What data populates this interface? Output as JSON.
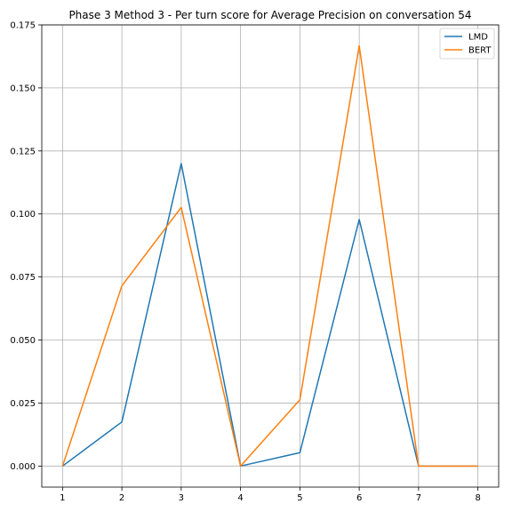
{
  "chart_data": {
    "type": "line",
    "title": "Phase 3 Method 3 - Per turn score for Average Precision on conversation 54",
    "xlabel": "",
    "ylabel": "",
    "x": [
      1,
      2,
      3,
      4,
      5,
      6,
      7,
      8
    ],
    "xticks": [
      "1",
      "2",
      "3",
      "4",
      "5",
      "6",
      "7",
      "8"
    ],
    "yticks": [
      "0.000",
      "0.025",
      "0.050",
      "0.075",
      "0.100",
      "0.125",
      "0.150",
      "0.175"
    ],
    "xlim": [
      0.65,
      8.35
    ],
    "ylim": [
      -0.00835,
      0.175
    ],
    "grid": true,
    "legend_position": "upper right",
    "series": [
      {
        "name": "LMD",
        "color": "#1f77b4",
        "values": [
          0.0,
          0.0175,
          0.12,
          0.0,
          0.0053,
          0.0978,
          0.0,
          0.0
        ]
      },
      {
        "name": "BERT",
        "color": "#ff7f0e",
        "values": [
          0.0,
          0.0715,
          0.1026,
          0.0,
          0.0263,
          0.1667,
          0.0,
          0.0
        ]
      }
    ]
  }
}
